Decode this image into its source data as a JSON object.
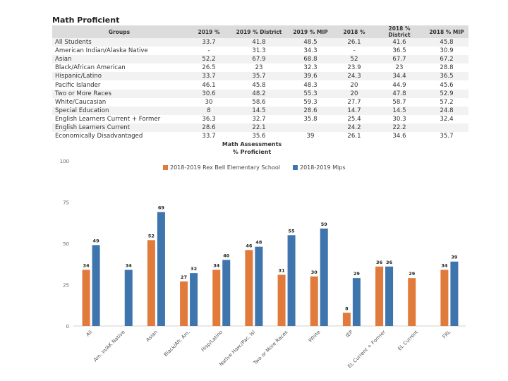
{
  "table": {
    "title": "Math Proficient",
    "headers": [
      "Groups",
      "2019 %",
      "2019 % District",
      "2019 % MIP",
      "2018 %",
      "2018 % District",
      "2018 % MIP"
    ],
    "rows": [
      [
        "All Students",
        "33.7",
        "41.8",
        "48.5",
        "26.1",
        "41.6",
        "45.8"
      ],
      [
        "American Indian/Alaska Native",
        "-",
        "31.3",
        "34.3",
        "-",
        "36.5",
        "30.9"
      ],
      [
        "Asian",
        "52.2",
        "67.9",
        "68.8",
        "52",
        "67.7",
        "67.2"
      ],
      [
        "Black/African American",
        "26.5",
        "23",
        "32.3",
        "23.9",
        "23",
        "28.8"
      ],
      [
        "Hispanic/Latino",
        "33.7",
        "35.7",
        "39.6",
        "24.3",
        "34.4",
        "36.5"
      ],
      [
        "Pacific Islander",
        "46.1",
        "45.8",
        "48.3",
        "20",
        "44.9",
        "45.6"
      ],
      [
        "Two or More Races",
        "30.6",
        "48.2",
        "55.3",
        "20",
        "47.8",
        "52.9"
      ],
      [
        "White/Caucasian",
        "30",
        "58.6",
        "59.3",
        "27.7",
        "58.7",
        "57.2"
      ],
      [
        "Special Education",
        "8",
        "14.5",
        "28.6",
        "14.7",
        "14.5",
        "24.8"
      ],
      [
        "English Learners Current + Former",
        "36.3",
        "32.7",
        "35.8",
        "25.4",
        "30.3",
        "32.4"
      ],
      [
        "English Learners Current",
        "28.6",
        "22.1",
        "",
        "24.2",
        "22.2",
        ""
      ],
      [
        "Economically Disadvantaged",
        "33.7",
        "35.6",
        "39",
        "26.1",
        "34.6",
        "35.7"
      ]
    ]
  },
  "chart_data": {
    "type": "bar",
    "title": "Math Assessments",
    "subtitle": "% Proficient",
    "categories": [
      "All",
      "Am. In/AK Native",
      "Asian",
      "Black/Afr. Am.",
      "Hisp/Latino",
      "Native Haw./Pac. Isl",
      "Two or More Races",
      "White",
      "IEP",
      "EL Current + Former",
      "EL Current",
      "FRL"
    ],
    "series": [
      {
        "name": "2018-2019 Rex Bell Elementary School",
        "color": "#e07b3c",
        "values": [
          34,
          null,
          52,
          27,
          34,
          46,
          31,
          30,
          8,
          36,
          29,
          34
        ]
      },
      {
        "name": "2018-2019 Mips",
        "color": "#3f75ad",
        "values": [
          49,
          34,
          69,
          32,
          40,
          48,
          55,
          59,
          29,
          36,
          null,
          39
        ]
      }
    ],
    "yticks": [
      0,
      25,
      50,
      75,
      100
    ],
    "ylim": [
      0,
      100
    ],
    "xlabel": "",
    "ylabel": "",
    "grid": false,
    "legend": "top-center"
  },
  "colors": {
    "header_bg": "#dcdcdc",
    "row_alt": "#f2f2f2",
    "axis": "#d0d0d0"
  }
}
